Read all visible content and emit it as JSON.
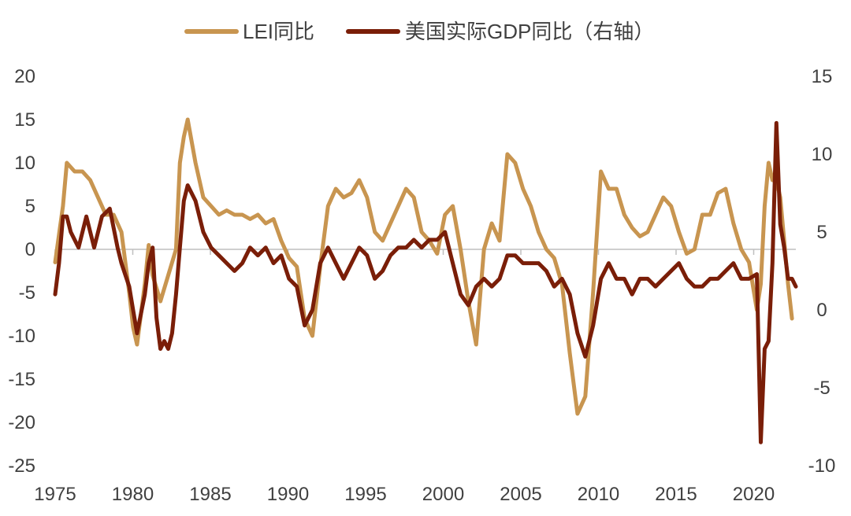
{
  "chart_data": {
    "type": "line",
    "title": "",
    "xlabel": "",
    "ylabel_left": "",
    "ylabel_right": "",
    "x_ticks": [
      "1975",
      "1980",
      "1985",
      "1990",
      "1995",
      "2000",
      "2005",
      "2010",
      "2015",
      "2020"
    ],
    "y_left_ticks": [
      "20",
      "15",
      "10",
      "5",
      "0",
      "-5",
      "-10",
      "-15",
      "-20",
      "-25"
    ],
    "y_right_ticks": [
      "15",
      "10",
      "5",
      "0",
      "-5",
      "-10"
    ],
    "y_left_range": [
      -25,
      20
    ],
    "y_right_range": [
      -10,
      15
    ],
    "x_range": [
      1975,
      2022.5
    ],
    "grid": false,
    "legend_position": "top-center",
    "series": [
      {
        "name": "LEI同比",
        "axis": "left",
        "color": "#C89550",
        "x": [
          1975.0,
          1975.5,
          1975.75,
          1976.25,
          1976.75,
          1977.25,
          1977.75,
          1978.25,
          1978.75,
          1979.25,
          1979.75,
          1980.0,
          1980.25,
          1980.75,
          1981.0,
          1981.25,
          1981.75,
          1982.25,
          1982.75,
          1983.0,
          1983.25,
          1983.5,
          1984.0,
          1984.5,
          1985.0,
          1985.5,
          1986.0,
          1986.5,
          1987.0,
          1987.5,
          1988.0,
          1988.5,
          1989.0,
          1989.5,
          1990.0,
          1990.5,
          1991.0,
          1991.5,
          1992.0,
          1992.5,
          1993.0,
          1993.5,
          1994.0,
          1994.5,
          1995.0,
          1995.5,
          1996.0,
          1996.5,
          1997.0,
          1997.5,
          1998.0,
          1998.5,
          1999.0,
          1999.5,
          2000.0,
          2000.5,
          2001.0,
          2001.5,
          2002.0,
          2002.5,
          2003.0,
          2003.5,
          2004.0,
          2004.5,
          2005.0,
          2005.5,
          2006.0,
          2006.5,
          2007.0,
          2007.5,
          2008.0,
          2008.5,
          2009.0,
          2009.5,
          2010.0,
          2010.5,
          2011.0,
          2011.5,
          2012.0,
          2012.5,
          2013.0,
          2013.5,
          2014.0,
          2014.5,
          2015.0,
          2015.5,
          2016.0,
          2016.5,
          2017.0,
          2017.5,
          2018.0,
          2018.5,
          2019.0,
          2019.5,
          2020.0,
          2020.25,
          2020.5,
          2020.75,
          2021.0,
          2021.25,
          2021.5,
          2021.75,
          2022.0,
          2022.25
        ],
        "values": [
          -1.5,
          5,
          10,
          9,
          9,
          8,
          6,
          4,
          4,
          2,
          -5,
          -9,
          -11,
          -4,
          0.5,
          -3,
          -6,
          -3,
          0,
          10,
          13,
          15,
          10,
          6,
          5,
          4,
          4.5,
          4,
          4,
          3.5,
          4,
          3,
          3.5,
          1,
          -1,
          -2,
          -8,
          -10,
          -2,
          5,
          7,
          6,
          6.5,
          8,
          6,
          2,
          1,
          3,
          5,
          7,
          6,
          2,
          1,
          -0.5,
          4,
          5,
          0,
          -6,
          -11,
          0,
          3,
          1,
          11,
          10,
          7,
          5,
          2,
          0,
          -1,
          -4,
          -12,
          -19,
          -17,
          -5,
          9,
          7,
          7,
          4,
          2.5,
          1.5,
          2,
          4,
          6,
          5,
          2,
          -0.5,
          0,
          4,
          4,
          6.5,
          7,
          3,
          0,
          -1.5,
          -7,
          -4,
          5,
          10,
          8,
          8,
          6,
          1,
          -4,
          -8
        ]
      },
      {
        "name": "美国实际GDP同比（右轴）",
        "axis": "right",
        "color": "#7A1E08",
        "x": [
          1975.0,
          1975.25,
          1975.5,
          1975.75,
          1976.0,
          1976.5,
          1977.0,
          1977.5,
          1978.0,
          1978.5,
          1979.0,
          1979.25,
          1979.75,
          1980.0,
          1980.25,
          1980.75,
          1981.0,
          1981.25,
          1981.5,
          1981.75,
          1982.0,
          1982.25,
          1982.5,
          1982.75,
          1983.0,
          1983.25,
          1983.5,
          1984.0,
          1984.5,
          1985.0,
          1985.5,
          1986.0,
          1986.5,
          1987.0,
          1987.5,
          1988.0,
          1988.5,
          1989.0,
          1989.5,
          1990.0,
          1990.5,
          1991.0,
          1991.5,
          1992.0,
          1992.5,
          1993.0,
          1993.5,
          1994.0,
          1994.5,
          1995.0,
          1995.5,
          1996.0,
          1996.5,
          1997.0,
          1997.5,
          1998.0,
          1998.5,
          1999.0,
          1999.5,
          2000.0,
          2000.5,
          2001.0,
          2001.5,
          2002.0,
          2002.5,
          2003.0,
          2003.5,
          2004.0,
          2004.5,
          2005.0,
          2005.5,
          2006.0,
          2006.5,
          2007.0,
          2007.5,
          2008.0,
          2008.5,
          2009.0,
          2009.5,
          2010.0,
          2010.5,
          2011.0,
          2011.5,
          2012.0,
          2012.5,
          2013.0,
          2013.5,
          2014.0,
          2014.5,
          2015.0,
          2015.5,
          2016.0,
          2016.5,
          2017.0,
          2017.5,
          2018.0,
          2018.5,
          2019.0,
          2019.5,
          2020.0,
          2020.25,
          2020.5,
          2020.75,
          2021.0,
          2021.25,
          2021.5,
          2021.75,
          2022.0,
          2022.25,
          2022.5
        ],
        "values": [
          1,
          3,
          6,
          6,
          5,
          4,
          6,
          4,
          6,
          6.5,
          4,
          3,
          1.5,
          0,
          -1.5,
          1,
          3,
          4,
          -0.5,
          -2.5,
          -2,
          -2.5,
          -1.5,
          1,
          4,
          7,
          8,
          7,
          5,
          4,
          3.5,
          3,
          2.5,
          3,
          4,
          3.5,
          4,
          3,
          3.5,
          2,
          1.5,
          -1,
          0,
          3,
          4,
          3,
          2,
          3,
          4,
          3.5,
          2,
          2.5,
          3.5,
          4,
          4,
          4.5,
          4,
          4.5,
          4.5,
          5,
          3,
          1,
          0.3,
          1.5,
          2,
          1.5,
          2,
          3.5,
          3.5,
          3,
          3,
          3,
          2.5,
          1.5,
          2,
          1,
          -1.5,
          -3,
          -1,
          2,
          3,
          2,
          2,
          1,
          2,
          2,
          1.5,
          2,
          2.5,
          3,
          2,
          1.5,
          1.5,
          2,
          2,
          2.5,
          3,
          2,
          2,
          2.3,
          -8.5,
          -2.5,
          -2,
          3,
          12,
          5.5,
          4,
          2,
          2,
          1.5
        ]
      }
    ]
  }
}
